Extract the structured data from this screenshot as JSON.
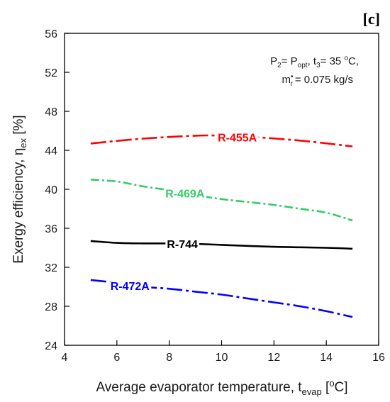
{
  "panel_label": "[c]",
  "conditions": {
    "line1": {
      "p2": "P",
      "p2_sub": "2",
      "eq": "= P",
      "popt_sub": "opt",
      "rest": ", t",
      "t3_sub": "3",
      "temp": "= 35 ",
      "deg_sup": "o",
      "deg_unit": "C,"
    },
    "line2": {
      "m": "m",
      "m_sup": "•",
      "m_sub": "r",
      "value": "= 0.075 kg/s"
    }
  },
  "chart_data": {
    "type": "line",
    "title": "",
    "xlabel": "Average evaporator temperature, t",
    "xlabel_sub": "evap",
    "xlabel_open": " [",
    "xlabel_sup": "o",
    "xlabel_unit": "C]",
    "ylabel": "Exergy efficiency, η",
    "ylabel_sub": "ex",
    "ylabel_unit": " [%]",
    "xlim": [
      4,
      16
    ],
    "ylim": [
      24,
      56
    ],
    "xticks": [
      4,
      6,
      8,
      10,
      12,
      14,
      16
    ],
    "yticks": [
      24,
      28,
      32,
      36,
      40,
      44,
      48,
      52,
      56
    ],
    "grid": false,
    "series": [
      {
        "name": "R-455A",
        "color": "#ff0000",
        "dash": "long-dash-dot",
        "x": [
          5,
          7,
          9,
          10,
          11,
          13,
          15
        ],
        "y": [
          44.7,
          45.2,
          45.5,
          45.5,
          45.4,
          45.0,
          44.4
        ],
        "label_x": 10.6,
        "label_y": 45.35
      },
      {
        "name": "R-469A",
        "color": "#33cc66",
        "dash": "dash-dot",
        "x": [
          5,
          6,
          7,
          8,
          9,
          10,
          11,
          12,
          13,
          14,
          15
        ],
        "y": [
          41.0,
          40.8,
          40.3,
          39.9,
          39.4,
          39.0,
          38.7,
          38.4,
          38.0,
          37.6,
          36.8
        ],
        "label_x": 8.6,
        "label_y": 39.6
      },
      {
        "name": "R-744",
        "color": "#000000",
        "dash": "solid",
        "x": [
          5,
          6,
          7,
          8,
          9,
          10,
          11,
          12,
          13,
          14,
          15
        ],
        "y": [
          34.7,
          34.5,
          34.45,
          34.45,
          34.4,
          34.3,
          34.2,
          34.1,
          34.05,
          34.0,
          33.9
        ],
        "label_x": 8.5,
        "label_y": 34.4
      },
      {
        "name": "R-472A",
        "color": "#0000ff",
        "dash": "long-dash-dot",
        "x": [
          5,
          6,
          7,
          8,
          9,
          10,
          11,
          12,
          13,
          14,
          15
        ],
        "y": [
          30.7,
          30.4,
          30.0,
          29.8,
          29.5,
          29.2,
          28.8,
          28.4,
          28.0,
          27.5,
          26.9
        ],
        "label_x": 6.5,
        "label_y": 30.1
      }
    ]
  }
}
